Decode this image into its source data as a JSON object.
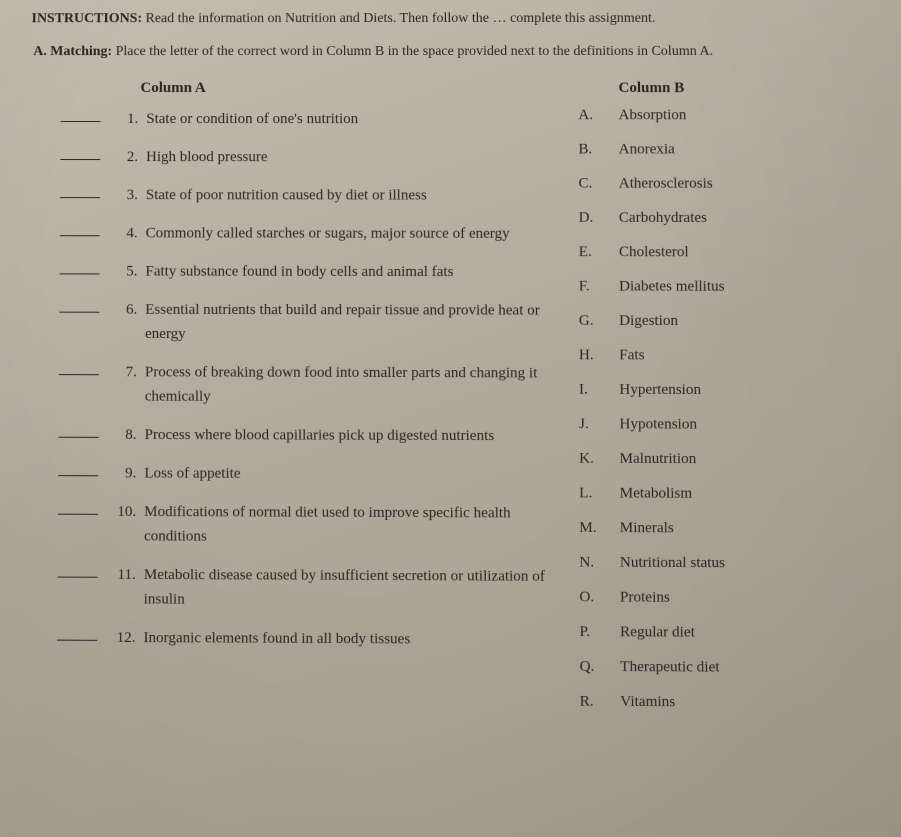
{
  "instructions": {
    "label": "INSTRUCTIONS:",
    "text": "Read the information on Nutrition and Diets. Then follow the … complete this assignment."
  },
  "section": {
    "label": "A. Matching:",
    "text": "Place the letter of the correct word in Column B in the space provided next to the definitions in Column A."
  },
  "columnA": {
    "header": "Column A",
    "items": [
      {
        "num": "1.",
        "text": "State or condition of one's nutrition"
      },
      {
        "num": "2.",
        "text": "High blood pressure"
      },
      {
        "num": "3.",
        "text": "State of poor nutrition caused by diet or illness"
      },
      {
        "num": "4.",
        "text": "Commonly called starches or sugars, major source of energy"
      },
      {
        "num": "5.",
        "text": "Fatty substance found in body cells and animal fats"
      },
      {
        "num": "6.",
        "text": "Essential nutrients that build and repair tissue and provide heat or energy"
      },
      {
        "num": "7.",
        "text": "Process of breaking down food into smaller parts and changing it chemically"
      },
      {
        "num": "8.",
        "text": "Process where blood capillaries pick up digested nutrients"
      },
      {
        "num": "9.",
        "text": "Loss of appetite"
      },
      {
        "num": "10.",
        "text": "Modifications of normal diet used to improve specific health conditions"
      },
      {
        "num": "11.",
        "text": "Metabolic disease caused by insufficient secretion or utilization of insulin"
      },
      {
        "num": "12.",
        "text": "Inorganic elements found in all body tissues"
      }
    ]
  },
  "columnB": {
    "header": "Column B",
    "items": [
      {
        "letter": "A.",
        "word": "Absorption"
      },
      {
        "letter": "B.",
        "word": "Anorexia"
      },
      {
        "letter": "C.",
        "word": "Atherosclerosis"
      },
      {
        "letter": "D.",
        "word": "Carbohydrates"
      },
      {
        "letter": "E.",
        "word": "Cholesterol"
      },
      {
        "letter": "F.",
        "word": "Diabetes mellitus"
      },
      {
        "letter": "G.",
        "word": "Digestion"
      },
      {
        "letter": "H.",
        "word": "Fats"
      },
      {
        "letter": "I.",
        "word": "Hypertension"
      },
      {
        "letter": "J.",
        "word": "Hypotension"
      },
      {
        "letter": "K.",
        "word": "Malnutrition"
      },
      {
        "letter": "L.",
        "word": "Metabolism"
      },
      {
        "letter": "M.",
        "word": "Minerals"
      },
      {
        "letter": "N.",
        "word": "Nutritional status"
      },
      {
        "letter": "O.",
        "word": "Proteins"
      },
      {
        "letter": "P.",
        "word": "Regular diet"
      },
      {
        "letter": "Q.",
        "word": "Therapeutic diet"
      },
      {
        "letter": "R.",
        "word": "Vitamins"
      }
    ]
  }
}
